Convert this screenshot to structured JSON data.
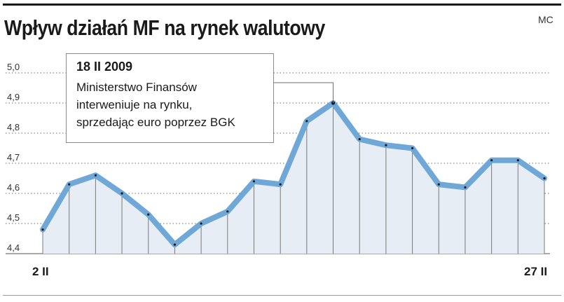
{
  "header": {
    "title": "Wpływ działań MF na rynek walutowy",
    "credit": "MC"
  },
  "annotation": {
    "date": "18 II 2009",
    "lines": [
      "Ministerstwo Finansów",
      "interweniuje na rynku,",
      "sprzedając euro poprzez BGK"
    ]
  },
  "chart_data": {
    "type": "line",
    "title": "Wpływ działań MF na rynek walutowy",
    "xlabel": "",
    "ylabel": "",
    "ylim": [
      4.4,
      5.0
    ],
    "yticks": [
      "4,4",
      "4,5",
      "4,6",
      "4,7",
      "4,8",
      "4,9",
      "5,0"
    ],
    "x_first_label": "2 II",
    "x_last_label": "27 II",
    "grid": true,
    "values": [
      4.48,
      4.63,
      4.66,
      4.6,
      4.53,
      4.43,
      4.5,
      4.54,
      4.64,
      4.63,
      4.84,
      4.9,
      4.78,
      4.76,
      4.75,
      4.63,
      4.62,
      4.71,
      4.71,
      4.65
    ],
    "highlight_index": 11,
    "colors": {
      "line": "#6fa8d6",
      "fill": "#e6edf4",
      "marker": "#1a1a1a",
      "grid": "#6e6e6e"
    }
  }
}
